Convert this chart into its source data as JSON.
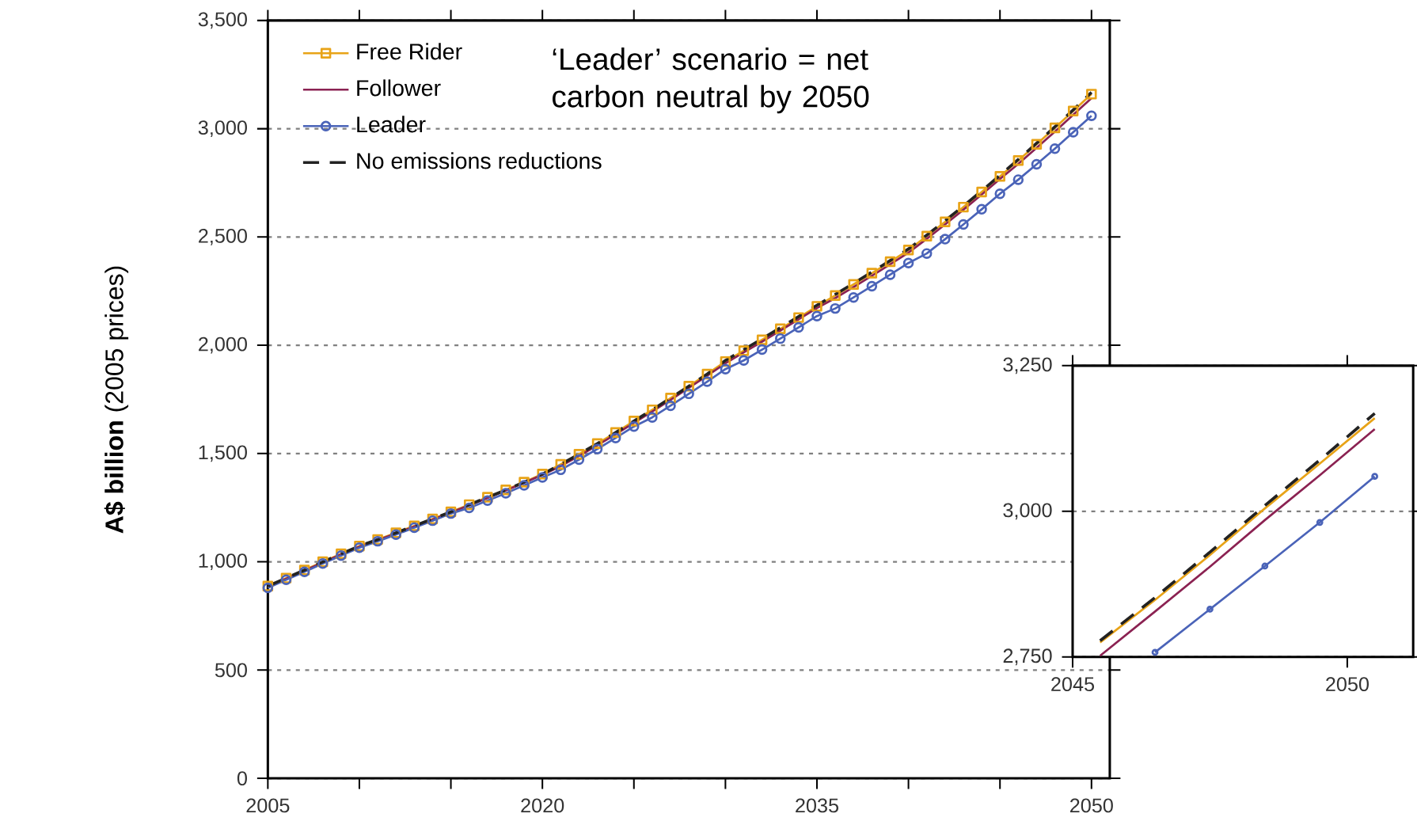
{
  "chart_data": [
    {
      "type": "line",
      "ylabel": "**A$ billion** (2005 prices)",
      "annotations": [
        "‘Leader’ scenario = net carbon neutral by 2050"
      ],
      "x": [
        2005,
        2006,
        2007,
        2008,
        2009,
        2010,
        2011,
        2012,
        2013,
        2014,
        2015,
        2016,
        2017,
        2018,
        2019,
        2020,
        2021,
        2022,
        2023,
        2024,
        2025,
        2026,
        2027,
        2028,
        2029,
        2030,
        2031,
        2032,
        2033,
        2034,
        2035,
        2036,
        2037,
        2038,
        2039,
        2040,
        2041,
        2042,
        2043,
        2044,
        2045,
        2046,
        2047,
        2048,
        2049,
        2050
      ],
      "series": [
        {
          "name": "Free Rider",
          "color": "#e8a317",
          "marker": "square",
          "line_style": "solid",
          "values": [
            888,
            925,
            962,
            1000,
            1037,
            1073,
            1103,
            1134,
            1166,
            1198,
            1231,
            1264,
            1298,
            1332,
            1368,
            1405,
            1450,
            1497,
            1546,
            1597,
            1650,
            1702,
            1756,
            1811,
            1867,
            1925,
            1975,
            2025,
            2076,
            2128,
            2180,
            2230,
            2281,
            2333,
            2386,
            2440,
            2504,
            2570,
            2638,
            2708,
            2780,
            2853,
            2928,
            3004,
            3082,
            3160
          ]
        },
        {
          "name": "Follower",
          "color": "#8b2252",
          "marker": "none",
          "line_style": "solid",
          "values": [
            885,
            922,
            959,
            997,
            1034,
            1070,
            1100,
            1131,
            1163,
            1195,
            1228,
            1261,
            1295,
            1329,
            1365,
            1402,
            1442,
            1489,
            1538,
            1589,
            1642,
            1694,
            1748,
            1803,
            1859,
            1917,
            1967,
            2017,
            2068,
            2120,
            2172,
            2218,
            2269,
            2321,
            2374,
            2428,
            2492,
            2558,
            2626,
            2696,
            2768,
            2838,
            2912,
            2987,
            3064,
            3141
          ]
        },
        {
          "name": "Leader",
          "color": "#4a63b8",
          "marker": "circle",
          "line_style": "solid",
          "values": [
            880,
            917,
            954,
            992,
            1029,
            1065,
            1095,
            1126,
            1158,
            1190,
            1223,
            1249,
            1283,
            1317,
            1353,
            1390,
            1425,
            1472,
            1521,
            1572,
            1625,
            1667,
            1721,
            1776,
            1832,
            1890,
            1930,
            1980,
            2031,
            2083,
            2135,
            2170,
            2221,
            2273,
            2326,
            2380,
            2424,
            2490,
            2558,
            2628,
            2700,
            2765,
            2836,
            2908,
            2984,
            3060
          ]
        },
        {
          "name": "No emissions reductions",
          "color": "#222222",
          "marker": "none",
          "line_style": "dashed",
          "values": [
            888,
            925,
            962,
            1000,
            1037,
            1073,
            1103,
            1134,
            1166,
            1198,
            1231,
            1264,
            1298,
            1332,
            1368,
            1405,
            1450,
            1497,
            1546,
            1597,
            1650,
            1702,
            1756,
            1811,
            1867,
            1930,
            1980,
            2030,
            2081,
            2133,
            2185,
            2235,
            2286,
            2338,
            2391,
            2445,
            2509,
            2575,
            2643,
            2713,
            2785,
            2858,
            2933,
            3009,
            3087,
            3168
          ]
        }
      ],
      "xlim": [
        2005,
        2051
      ],
      "ylim": [
        0,
        3500
      ],
      "xticks": [
        2005,
        {
          "value": 2010,
          "label": null
        },
        {
          "value": 2015,
          "label": null
        },
        2020,
        {
          "value": 2025,
          "label": null
        },
        {
          "value": 2030,
          "label": null
        },
        2035,
        {
          "value": 2040,
          "label": null
        },
        {
          "value": 2045,
          "label": null
        },
        2050
      ],
      "yticks": [
        0,
        500,
        {
          "value": 1000,
          "label": "1,000"
        },
        {
          "value": 1500,
          "label": "1,500"
        },
        {
          "value": 2000,
          "label": "2,000"
        },
        {
          "value": 2500,
          "label": "2,500"
        },
        {
          "value": 3000,
          "label": "3,000"
        },
        {
          "value": 3500,
          "label": "3,500"
        }
      ],
      "grid": "y",
      "legend": "top left"
    },
    {
      "type": "line",
      "x": [
        2045.5,
        2046.5,
        2047.5,
        2048.5,
        2049.5,
        2050.5
      ],
      "series": [
        {
          "color": "#e8a317",
          "marker": "none",
          "line_style": "solid",
          "values": [
            2775,
            2848,
            2925,
            3005,
            3082,
            3160
          ]
        },
        {
          "color": "#8b2252",
          "marker": "none",
          "line_style": "solid",
          "values": [
            2752,
            2828,
            2905,
            2985,
            3062,
            3141
          ]
        },
        {
          "color": "#4a63b8",
          "marker": "circle",
          "line_style": "solid",
          "x": [
            2046.5,
            2047.5,
            2048.5,
            2049.5,
            2050.5
          ],
          "values": [
            2758,
            2832,
            2906,
            2981,
            3060
          ]
        },
        {
          "color": "#222222",
          "marker": "none",
          "line_style": "dashed",
          "values": [
            2778,
            2852,
            2930,
            3010,
            3088,
            3168
          ]
        }
      ],
      "xlim": [
        2045,
        2051.2
      ],
      "ylim": [
        2750,
        3250
      ],
      "xticks": [
        2045,
        2050
      ],
      "yticks": [
        {
          "value": 2750,
          "label": "2,750"
        },
        {
          "value": 3000,
          "label": "3,000"
        },
        {
          "value": 3250,
          "label": "3,250"
        }
      ],
      "grid": "y"
    }
  ]
}
